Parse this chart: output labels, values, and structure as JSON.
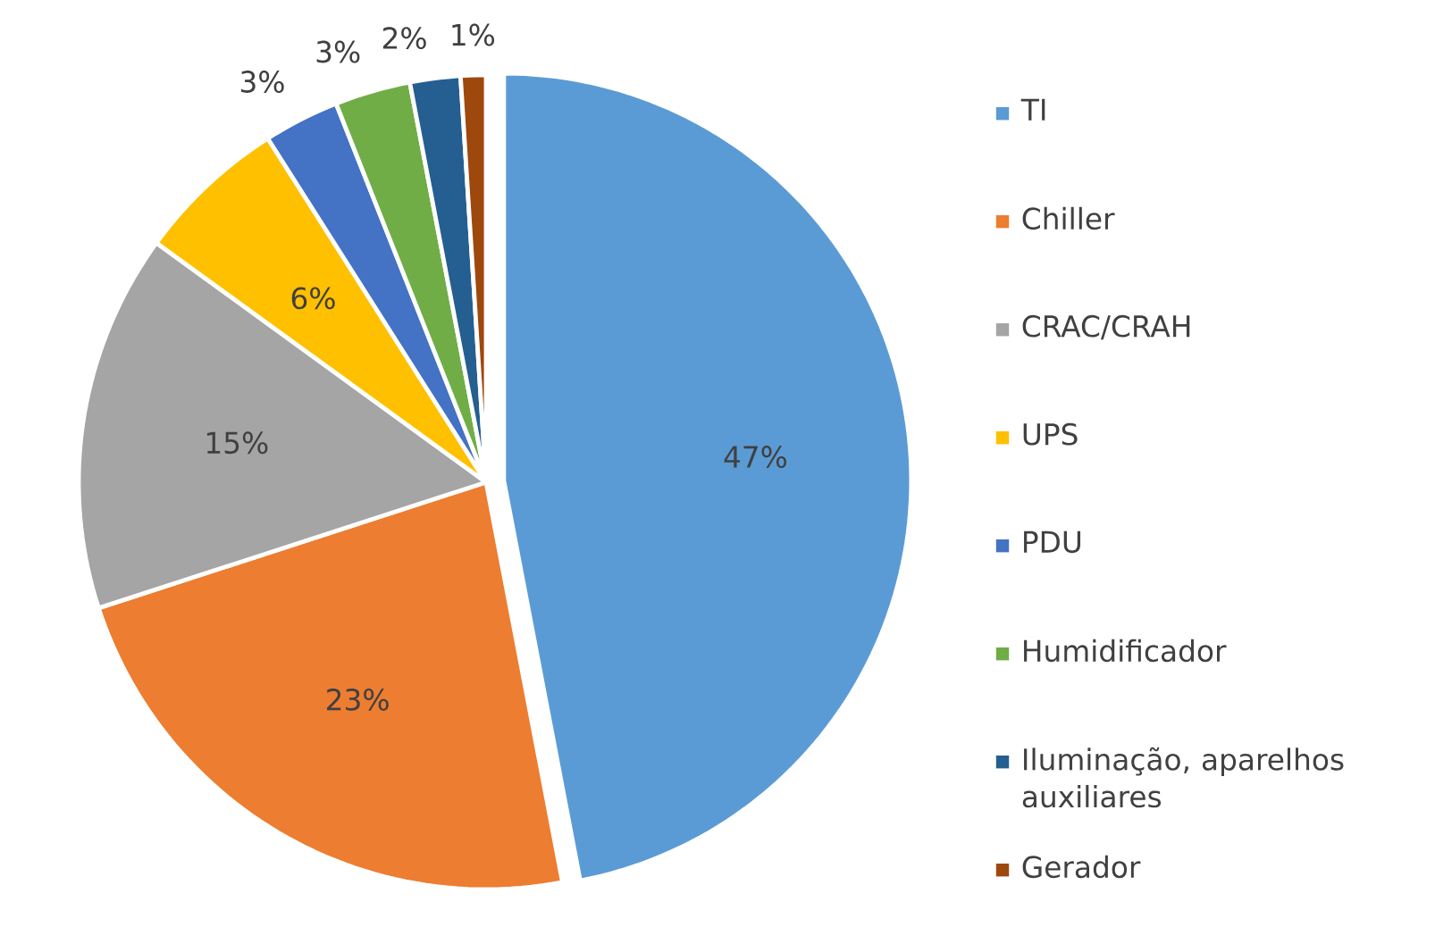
{
  "chart_data": {
    "type": "pie",
    "categories": [
      "TI",
      "Chiller",
      "CRAC/CRAH",
      "UPS",
      "PDU",
      "Humidificador",
      "Iluminação, aparelhos auxiliares",
      "Gerador"
    ],
    "values": [
      47,
      23,
      15,
      6,
      3,
      3,
      2,
      1
    ],
    "colors": [
      "#5b9bd5",
      "#ed7d31",
      "#a5a5a5",
      "#ffc000",
      "#4472c4",
      "#70ad47",
      "#255e91",
      "#9e480e"
    ],
    "value_labels": [
      "47%",
      "23%",
      "15%",
      "6%",
      "3%",
      "3%",
      "2%",
      "1%"
    ],
    "legend": "right"
  }
}
